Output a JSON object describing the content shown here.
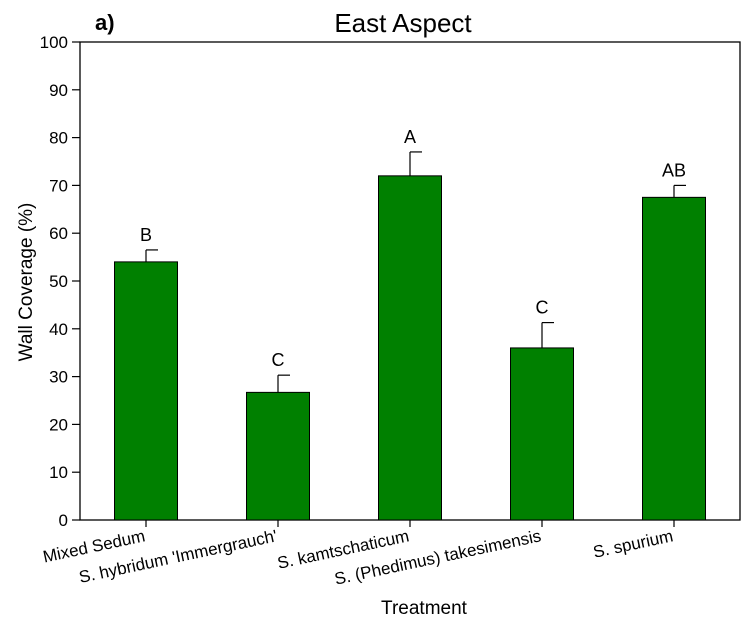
{
  "chart_data": {
    "type": "bar",
    "panel_label": "a)",
    "title": "East Aspect",
    "xlabel": "Treatment",
    "ylabel": "Wall Coverage (%)",
    "ylim": [
      0,
      100
    ],
    "yticks": [
      0,
      10,
      20,
      30,
      40,
      50,
      60,
      70,
      80,
      90,
      100
    ],
    "grid": false,
    "categories": [
      "Mixed Sedum",
      "S. hybridum 'Immergrauch'",
      "S. kamtschaticum",
      "S. (Phedimus) takesimensis",
      "S. spurium"
    ],
    "values": [
      54,
      26.7,
      72,
      36,
      67.5
    ],
    "error_upper": [
      56.5,
      30.3,
      77,
      41.3,
      70
    ],
    "significance_letters": [
      "B",
      "C",
      "A",
      "C",
      "AB"
    ],
    "bar_color": "#008000"
  }
}
